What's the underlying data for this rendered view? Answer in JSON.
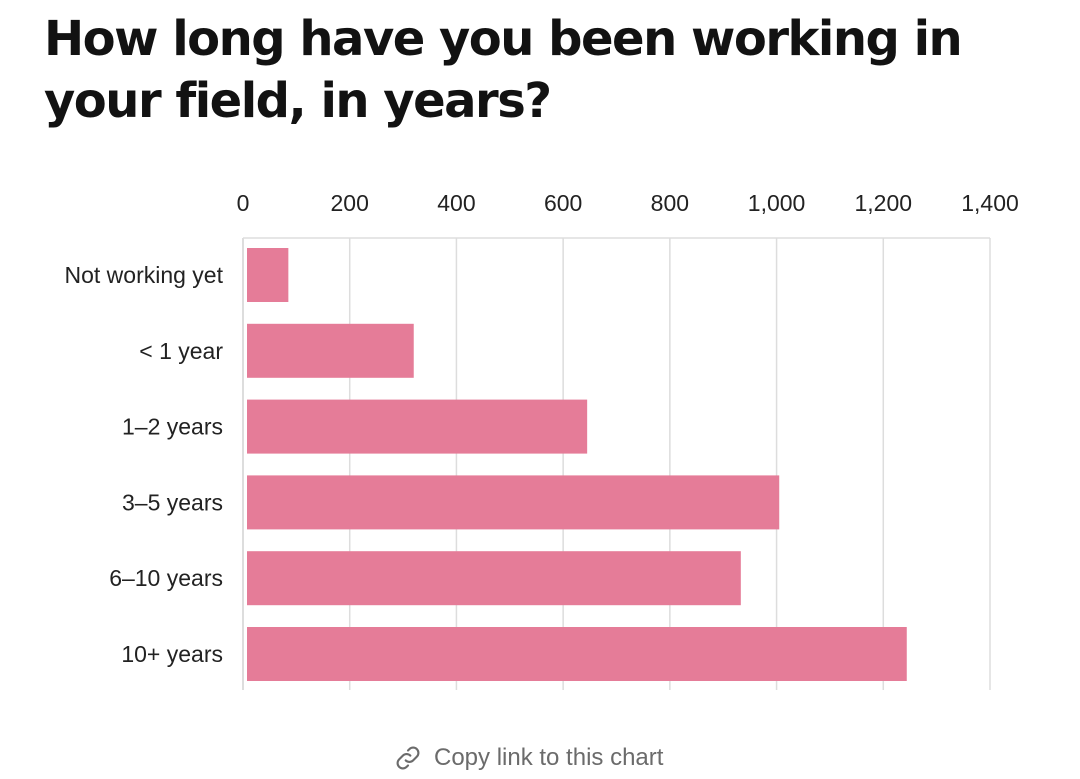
{
  "page": {
    "title": "How long have you been working in your field, in years?",
    "copy_link_label": "Copy link to this chart",
    "link_icon": "link-icon"
  },
  "colors": {
    "bar": "#e57c98",
    "grid": "#dddddd",
    "text": "#222222",
    "muted": "#6b6b6b"
  },
  "chart_data": {
    "type": "bar",
    "orientation": "horizontal",
    "title": "How long have you been working in your field, in years?",
    "categories": [
      "Not working yet",
      "< 1 year",
      "1–2 years",
      "3–5 years",
      "6–10 years",
      "10+ years"
    ],
    "values": [
      85,
      320,
      645,
      1005,
      933,
      1244
    ],
    "xlim": [
      0,
      1400
    ],
    "xticks": [
      0,
      200,
      400,
      600,
      800,
      1000,
      1200,
      1400
    ],
    "xtick_labels": [
      "0",
      "200",
      "400",
      "600",
      "800",
      "1,000",
      "1,200",
      "1,400"
    ],
    "x_axis_position": "top",
    "grid": true,
    "legend": "none"
  }
}
